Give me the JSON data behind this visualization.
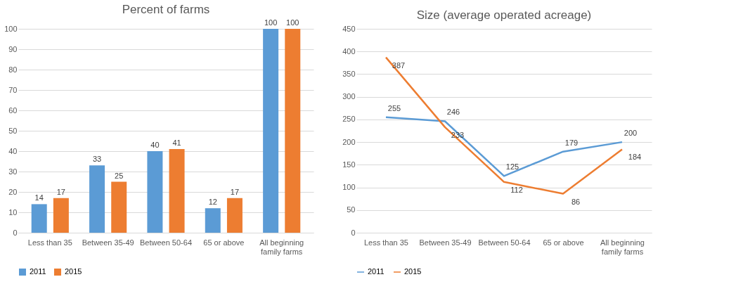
{
  "chart_data": [
    {
      "type": "bar",
      "title": "Percent of farms",
      "categories": [
        "Less than 35",
        "Between 35-49",
        "Between 50-64",
        "65 or above",
        "All beginning family farms"
      ],
      "series": [
        {
          "name": "2011",
          "color": "#5b9bd5",
          "values": [
            14,
            33,
            40,
            12,
            100
          ]
        },
        {
          "name": "2015",
          "color": "#ed7d31",
          "values": [
            17,
            25,
            41,
            17,
            100
          ]
        }
      ],
      "ylim": [
        0,
        100
      ],
      "yticks": [
        0,
        10,
        20,
        30,
        40,
        50,
        60,
        70,
        80,
        90,
        100
      ],
      "grid": "y",
      "legend": "bottom",
      "data_labels": true
    },
    {
      "type": "line",
      "title": "Size (average operated acreage)",
      "categories": [
        "Less than 35",
        "Between 35-49",
        "Between 50-64",
        "65 or above",
        "All beginning family farms"
      ],
      "series": [
        {
          "name": "2011",
          "color": "#5b9bd5",
          "values": [
            255,
            246,
            125,
            179,
            200
          ]
        },
        {
          "name": "2015",
          "color": "#ed7d31",
          "values": [
            387,
            233,
            112,
            86,
            184
          ]
        }
      ],
      "ylim": [
        0,
        450
      ],
      "yticks": [
        0,
        50,
        100,
        150,
        200,
        250,
        300,
        350,
        400,
        450
      ],
      "grid": "y",
      "legend": "bottom",
      "data_labels": true,
      "marker": "none",
      "line_style": "solid"
    }
  ]
}
